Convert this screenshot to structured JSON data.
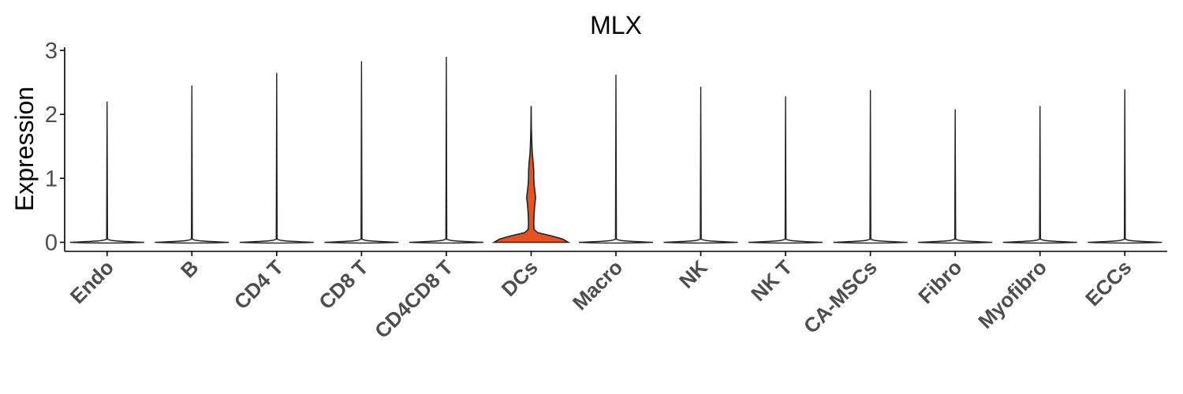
{
  "chart_data": {
    "type": "violin",
    "title": "MLX",
    "xlabel": "",
    "ylabel": "Expression",
    "ylim": [
      0,
      3
    ],
    "yticks": [
      0,
      1,
      2,
      3
    ],
    "grid": false,
    "legend": "none",
    "categories": [
      "Endo",
      "B",
      "CD4 T",
      "CD8 T",
      "CD4CD8 T",
      "DCs",
      "Macro",
      "NK",
      "NK T",
      "CA-MSCs",
      "Fibro",
      "Myofibro",
      "ECCs"
    ],
    "max_values": [
      2.2,
      2.45,
      2.65,
      2.83,
      2.9,
      2.13,
      2.62,
      2.43,
      2.28,
      2.38,
      2.08,
      2.13,
      2.39
    ],
    "highlight": {
      "category": "DCs",
      "color": "#e6531f"
    },
    "density_profiles": {
      "DCs": [
        [
          0.0,
          1.0
        ],
        [
          0.05,
          0.85
        ],
        [
          0.1,
          0.55
        ],
        [
          0.15,
          0.18
        ],
        [
          0.2,
          0.08
        ],
        [
          0.3,
          0.07
        ],
        [
          0.45,
          0.08
        ],
        [
          0.6,
          0.1
        ],
        [
          0.7,
          0.12
        ],
        [
          0.8,
          0.1
        ],
        [
          0.9,
          0.08
        ],
        [
          1.0,
          0.07
        ],
        [
          1.1,
          0.07
        ],
        [
          1.2,
          0.06
        ],
        [
          1.4,
          0.03
        ],
        [
          1.6,
          0.015
        ],
        [
          1.8,
          0.006
        ],
        [
          2.13,
          0.0
        ]
      ]
    }
  }
}
